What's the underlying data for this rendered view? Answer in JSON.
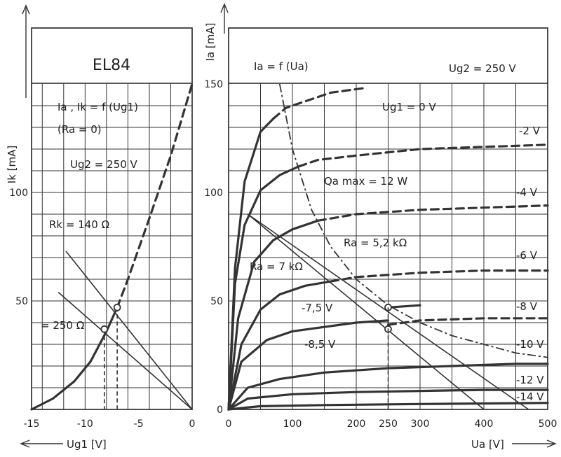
{
  "chart_data": [
    {
      "type": "line",
      "title": "EL84",
      "annotations": [
        "Ia , Ik = f (Ug1)",
        "(Ra = 0)",
        "Ug2 = 250 V",
        "Rk = 140 Ω",
        "= 250 Ω"
      ],
      "xlabel": "Ug1 [V]",
      "ylabel": "Ik [mA]",
      "xlim": [
        -15,
        0
      ],
      "ylim": [
        0,
        150
      ],
      "xticks": [
        -15,
        -10,
        -5,
        0
      ],
      "yticks": [
        50,
        100
      ],
      "grid": true,
      "series": [
        {
          "name": "Ug2 = 250 V",
          "style": "solid-then-dashed",
          "x": [
            -15,
            -13,
            -11,
            -9.5,
            -8,
            -7,
            -6,
            -4,
            -2,
            0
          ],
          "y": [
            0,
            5,
            13,
            22,
            36,
            47,
            60,
            88,
            117,
            150
          ]
        },
        {
          "name": "Rk = 140 Ω",
          "style": "thin-line",
          "x": [
            -11.8,
            0
          ],
          "y": [
            73,
            0
          ]
        },
        {
          "name": "= 250 Ω",
          "style": "thin-line",
          "x": [
            -12.5,
            0
          ],
          "y": [
            54,
            0
          ]
        }
      ],
      "operating_points": [
        {
          "x": -7,
          "y": 47
        },
        {
          "x": -8.2,
          "y": 37
        }
      ]
    },
    {
      "type": "line",
      "title": "Ia = f (Ua)",
      "annotations": [
        "Ug2 = 250 V",
        "Qa max = 12 W",
        "Ra = 5,2 kΩ",
        "Ra = 7 kΩ"
      ],
      "xlabel": "Ua [V]",
      "ylabel": "Ia [mA]",
      "xlim": [
        0,
        500
      ],
      "ylim": [
        0,
        150
      ],
      "xticks": [
        0,
        100,
        200,
        250,
        300,
        400,
        500
      ],
      "yticks": [
        0,
        50,
        100,
        150
      ],
      "grid": true,
      "series": [
        {
          "name": "Ug1 = 0 V",
          "x": [
            0,
            10,
            25,
            50,
            70,
            90,
            120,
            160,
            210
          ],
          "y": [
            0,
            65,
            105,
            128,
            134,
            139,
            142,
            146,
            148
          ]
        },
        {
          "name": "-2 V",
          "x": [
            0,
            10,
            25,
            50,
            80,
            110,
            140,
            200,
            300,
            400,
            500
          ],
          "y": [
            0,
            58,
            85,
            101,
            108,
            112,
            115,
            117,
            120,
            121,
            122
          ]
        },
        {
          "name": "-4 V",
          "x": [
            0,
            15,
            40,
            70,
            100,
            140,
            200,
            300,
            400,
            500
          ],
          "y": [
            0,
            42,
            68,
            78,
            83,
            87,
            90,
            92,
            93,
            94
          ]
        },
        {
          "name": "-6 V",
          "x": [
            0,
            20,
            50,
            80,
            120,
            160,
            200,
            300,
            400,
            500
          ],
          "y": [
            0,
            30,
            46,
            53,
            57,
            59,
            61,
            63,
            64,
            64
          ]
        },
        {
          "name": "-7,5 V",
          "x": [
            250,
            300
          ],
          "y": [
            47,
            48
          ]
        },
        {
          "name": "-8 V",
          "x": [
            0,
            20,
            60,
            100,
            150,
            200,
            250
          ],
          "y": [
            0,
            22,
            32,
            36,
            38,
            40,
            41
          ]
        },
        {
          "name": "-8,5 V",
          "x": [
            250,
            300,
            400,
            500
          ],
          "y": [
            39,
            41,
            42,
            42
          ]
        },
        {
          "name": "-10 V",
          "x": [
            0,
            30,
            80,
            150,
            250,
            350,
            450,
            500
          ],
          "y": [
            0,
            10,
            14,
            17,
            19,
            20,
            21,
            21
          ]
        },
        {
          "name": "-12 V",
          "x": [
            0,
            30,
            100,
            200,
            300,
            400,
            500
          ],
          "y": [
            0,
            5,
            7,
            8,
            8.5,
            9,
            9
          ]
        },
        {
          "name": "-14 V",
          "x": [
            0,
            50,
            150,
            300,
            500
          ],
          "y": [
            0,
            1.5,
            2,
            2.5,
            3
          ]
        },
        {
          "name": "Qa max = 12 W",
          "style": "dash-dot",
          "x": [
            80,
            100,
            130,
            160,
            200,
            250,
            300,
            350,
            400,
            450,
            500
          ],
          "y": [
            150,
            120,
            92,
            75,
            60,
            48,
            40,
            34,
            30,
            26,
            24
          ]
        },
        {
          "name": "Ra = 5,2 kΩ",
          "style": "thin-line",
          "x": [
            30,
            470
          ],
          "y": [
            90,
            0
          ]
        },
        {
          "name": "Ra = 7 kΩ",
          "style": "thin-line",
          "x": [
            30,
            400
          ],
          "y": [
            90,
            0
          ]
        }
      ],
      "operating_points": [
        {
          "x": 250,
          "y": 47
        },
        {
          "x": 250,
          "y": 37
        }
      ]
    }
  ]
}
